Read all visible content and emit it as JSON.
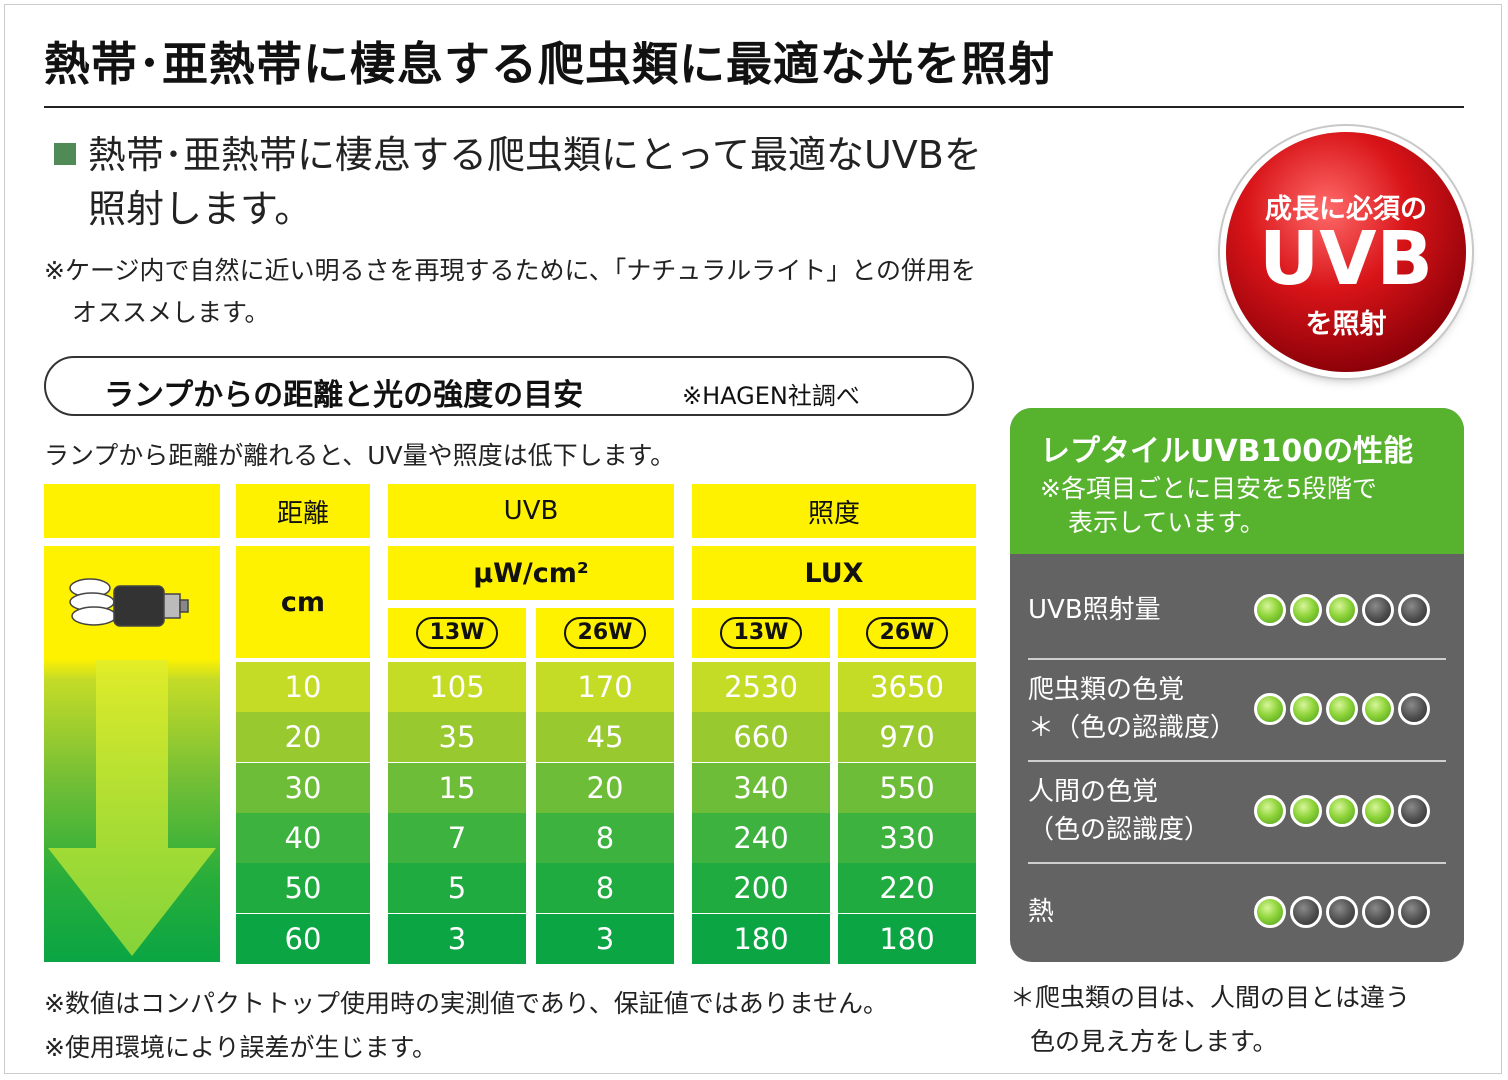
{
  "title": "熱帯･亜熱帯に棲息する爬虫類に最適な光を照射",
  "lead": {
    "line1": "熱帯･亜熱帯に棲息する爬虫類にとって最適なUVBを",
    "line2": "照射します。"
  },
  "note": {
    "line1": "※ケージ内で自然に近い明るさを再現するために、「ナチュラルライト」との併用を",
    "line2": "オススメします。"
  },
  "badge": {
    "top": "成長に必須の",
    "main": "UVB",
    "bottom": "を照射"
  },
  "section": {
    "title": "ランプからの距離と光の強度の目安",
    "source": "※HAGEN社調べ",
    "description": "ランプから距離が離れると、UV量や照度は低下します。"
  },
  "table": {
    "headers": {
      "distance": "距離",
      "uvb": "UVB",
      "lux_group": "照度"
    },
    "units": {
      "distance": "cm",
      "uvb": "μW/cm²",
      "lux": "LUX"
    },
    "watts": {
      "uvb_13": "13W",
      "uvb_26": "26W",
      "lux_13": "13W",
      "lux_26": "26W"
    },
    "rows": [
      {
        "cm": "10",
        "uvb13": "105",
        "uvb26": "170",
        "lux13": "2530",
        "lux26": "3650"
      },
      {
        "cm": "20",
        "uvb13": "35",
        "uvb26": "45",
        "lux13": "660",
        "lux26": "970"
      },
      {
        "cm": "30",
        "uvb13": "15",
        "uvb26": "20",
        "lux13": "340",
        "lux26": "550"
      },
      {
        "cm": "40",
        "uvb13": "7",
        "uvb26": "8",
        "lux13": "240",
        "lux26": "330"
      },
      {
        "cm": "50",
        "uvb13": "5",
        "uvb26": "8",
        "lux13": "200",
        "lux26": "220"
      },
      {
        "cm": "60",
        "uvb13": "3",
        "uvb26": "3",
        "lux13": "180",
        "lux26": "180"
      }
    ],
    "row_colors": [
      "#c5dc27",
      "#98c92f",
      "#6dbd38",
      "#3db23e",
      "#20ab40",
      "#0ca544"
    ]
  },
  "footnotes": {
    "line1": "※数値はコンパクトトップ使用時の実測値であり、保証値ではありません。",
    "line2": "※使用環境により誤差が生じます。"
  },
  "performance": {
    "title": "レプタイルUVB100の性能",
    "note1": "※各項目ごとに目安を5段階で",
    "note2": "表示しています。",
    "items": [
      {
        "label1": "UVB照射量",
        "label2": "",
        "level": 3
      },
      {
        "label1": "爬虫類の色覚",
        "label2": "＊（色の認識度）",
        "level": 4
      },
      {
        "label1": "人間の色覚",
        "label2": "（色の認識度）",
        "level": 4
      },
      {
        "label1": "熱",
        "label2": "",
        "level": 1
      }
    ],
    "max_level": 5
  },
  "footnote_right": {
    "line1": "＊爬虫類の目は、人間の目とは違う",
    "line2": "色の見え方をします。"
  }
}
